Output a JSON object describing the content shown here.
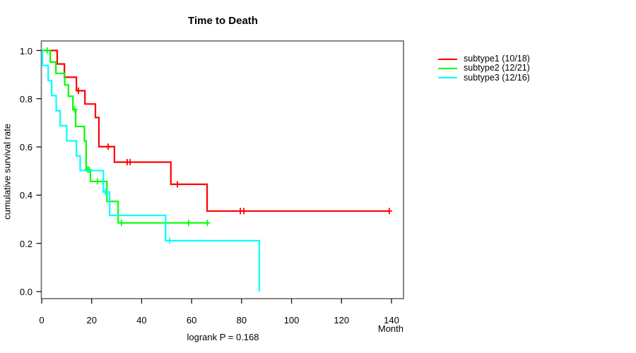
{
  "chart_data": {
    "type": "line",
    "chart_kind": "kaplan-meier-step-curves",
    "title": "Time to Death",
    "xlabel": "Month",
    "ylabel": "cumulative survival rate",
    "annotation": "logrank P = 0.168",
    "xlim": [
      0,
      145
    ],
    "ylim": [
      0.0,
      1.0
    ],
    "xticks": [
      0,
      20,
      40,
      60,
      80,
      100,
      120,
      140
    ],
    "yticks": [
      "0.0",
      "0.2",
      "0.4",
      "0.6",
      "0.8",
      "1.0"
    ],
    "grid": false,
    "legend_position": "right-outside",
    "series": [
      {
        "name": "subtype1 (10/18)",
        "color": "#FF0000",
        "n_at_risk": 18,
        "n_events": 10,
        "end_month": 139.1,
        "steps": [
          [
            0,
            1.0
          ],
          [
            6.2,
            0.944
          ],
          [
            9.1,
            0.889
          ],
          [
            13.9,
            0.833
          ],
          [
            17.3,
            0.778
          ],
          [
            21.5,
            0.722
          ],
          [
            22.9,
            0.601
          ],
          [
            29.1,
            0.537
          ],
          [
            51.7,
            0.445
          ],
          [
            66.2,
            0.334
          ]
        ],
        "censors": [
          [
            14.7,
            0.833
          ],
          [
            26.6,
            0.601
          ],
          [
            34.2,
            0.537
          ],
          [
            35.4,
            0.537
          ],
          [
            54.3,
            0.445
          ],
          [
            79.5,
            0.334
          ],
          [
            80.9,
            0.334
          ],
          [
            139.1,
            0.334
          ]
        ]
      },
      {
        "name": "subtype2 (12/21)",
        "color": "#00FF00",
        "n_at_risk": 21,
        "n_events": 12,
        "end_month": 66.3,
        "steps": [
          [
            0,
            1.0
          ],
          [
            3.4,
            0.952
          ],
          [
            5.7,
            0.905
          ],
          [
            9.2,
            0.857
          ],
          [
            10.7,
            0.81
          ],
          [
            12.5,
            0.755
          ],
          [
            13.6,
            0.685
          ],
          [
            17.1,
            0.625
          ],
          [
            17.8,
            0.506
          ],
          [
            19.5,
            0.457
          ],
          [
            26.1,
            0.374
          ],
          [
            30.6,
            0.285
          ]
        ],
        "censors": [
          [
            2.2,
            1.0
          ],
          [
            13.2,
            0.755
          ],
          [
            18.3,
            0.506
          ],
          [
            18.9,
            0.506
          ],
          [
            22.3,
            0.457
          ],
          [
            31.9,
            0.285
          ],
          [
            58.8,
            0.285
          ],
          [
            66.3,
            0.285
          ]
        ]
      },
      {
        "name": "subtype3 (12/16)",
        "color": "#00FFFF",
        "n_at_risk": 16,
        "n_events": 12,
        "end_month": 87.1,
        "steps": [
          [
            0,
            1.0
          ],
          [
            0.3,
            0.938
          ],
          [
            2.6,
            0.875
          ],
          [
            4.0,
            0.813
          ],
          [
            5.8,
            0.75
          ],
          [
            7.4,
            0.688
          ],
          [
            10.0,
            0.625
          ],
          [
            13.9,
            0.563
          ],
          [
            15.4,
            0.502
          ],
          [
            24.7,
            0.413
          ],
          [
            27.2,
            0.316
          ],
          [
            49.6,
            0.211
          ],
          [
            87.1,
            0.0
          ]
        ],
        "censors": [
          [
            25.4,
            0.413
          ],
          [
            51.2,
            0.211
          ]
        ]
      }
    ]
  }
}
